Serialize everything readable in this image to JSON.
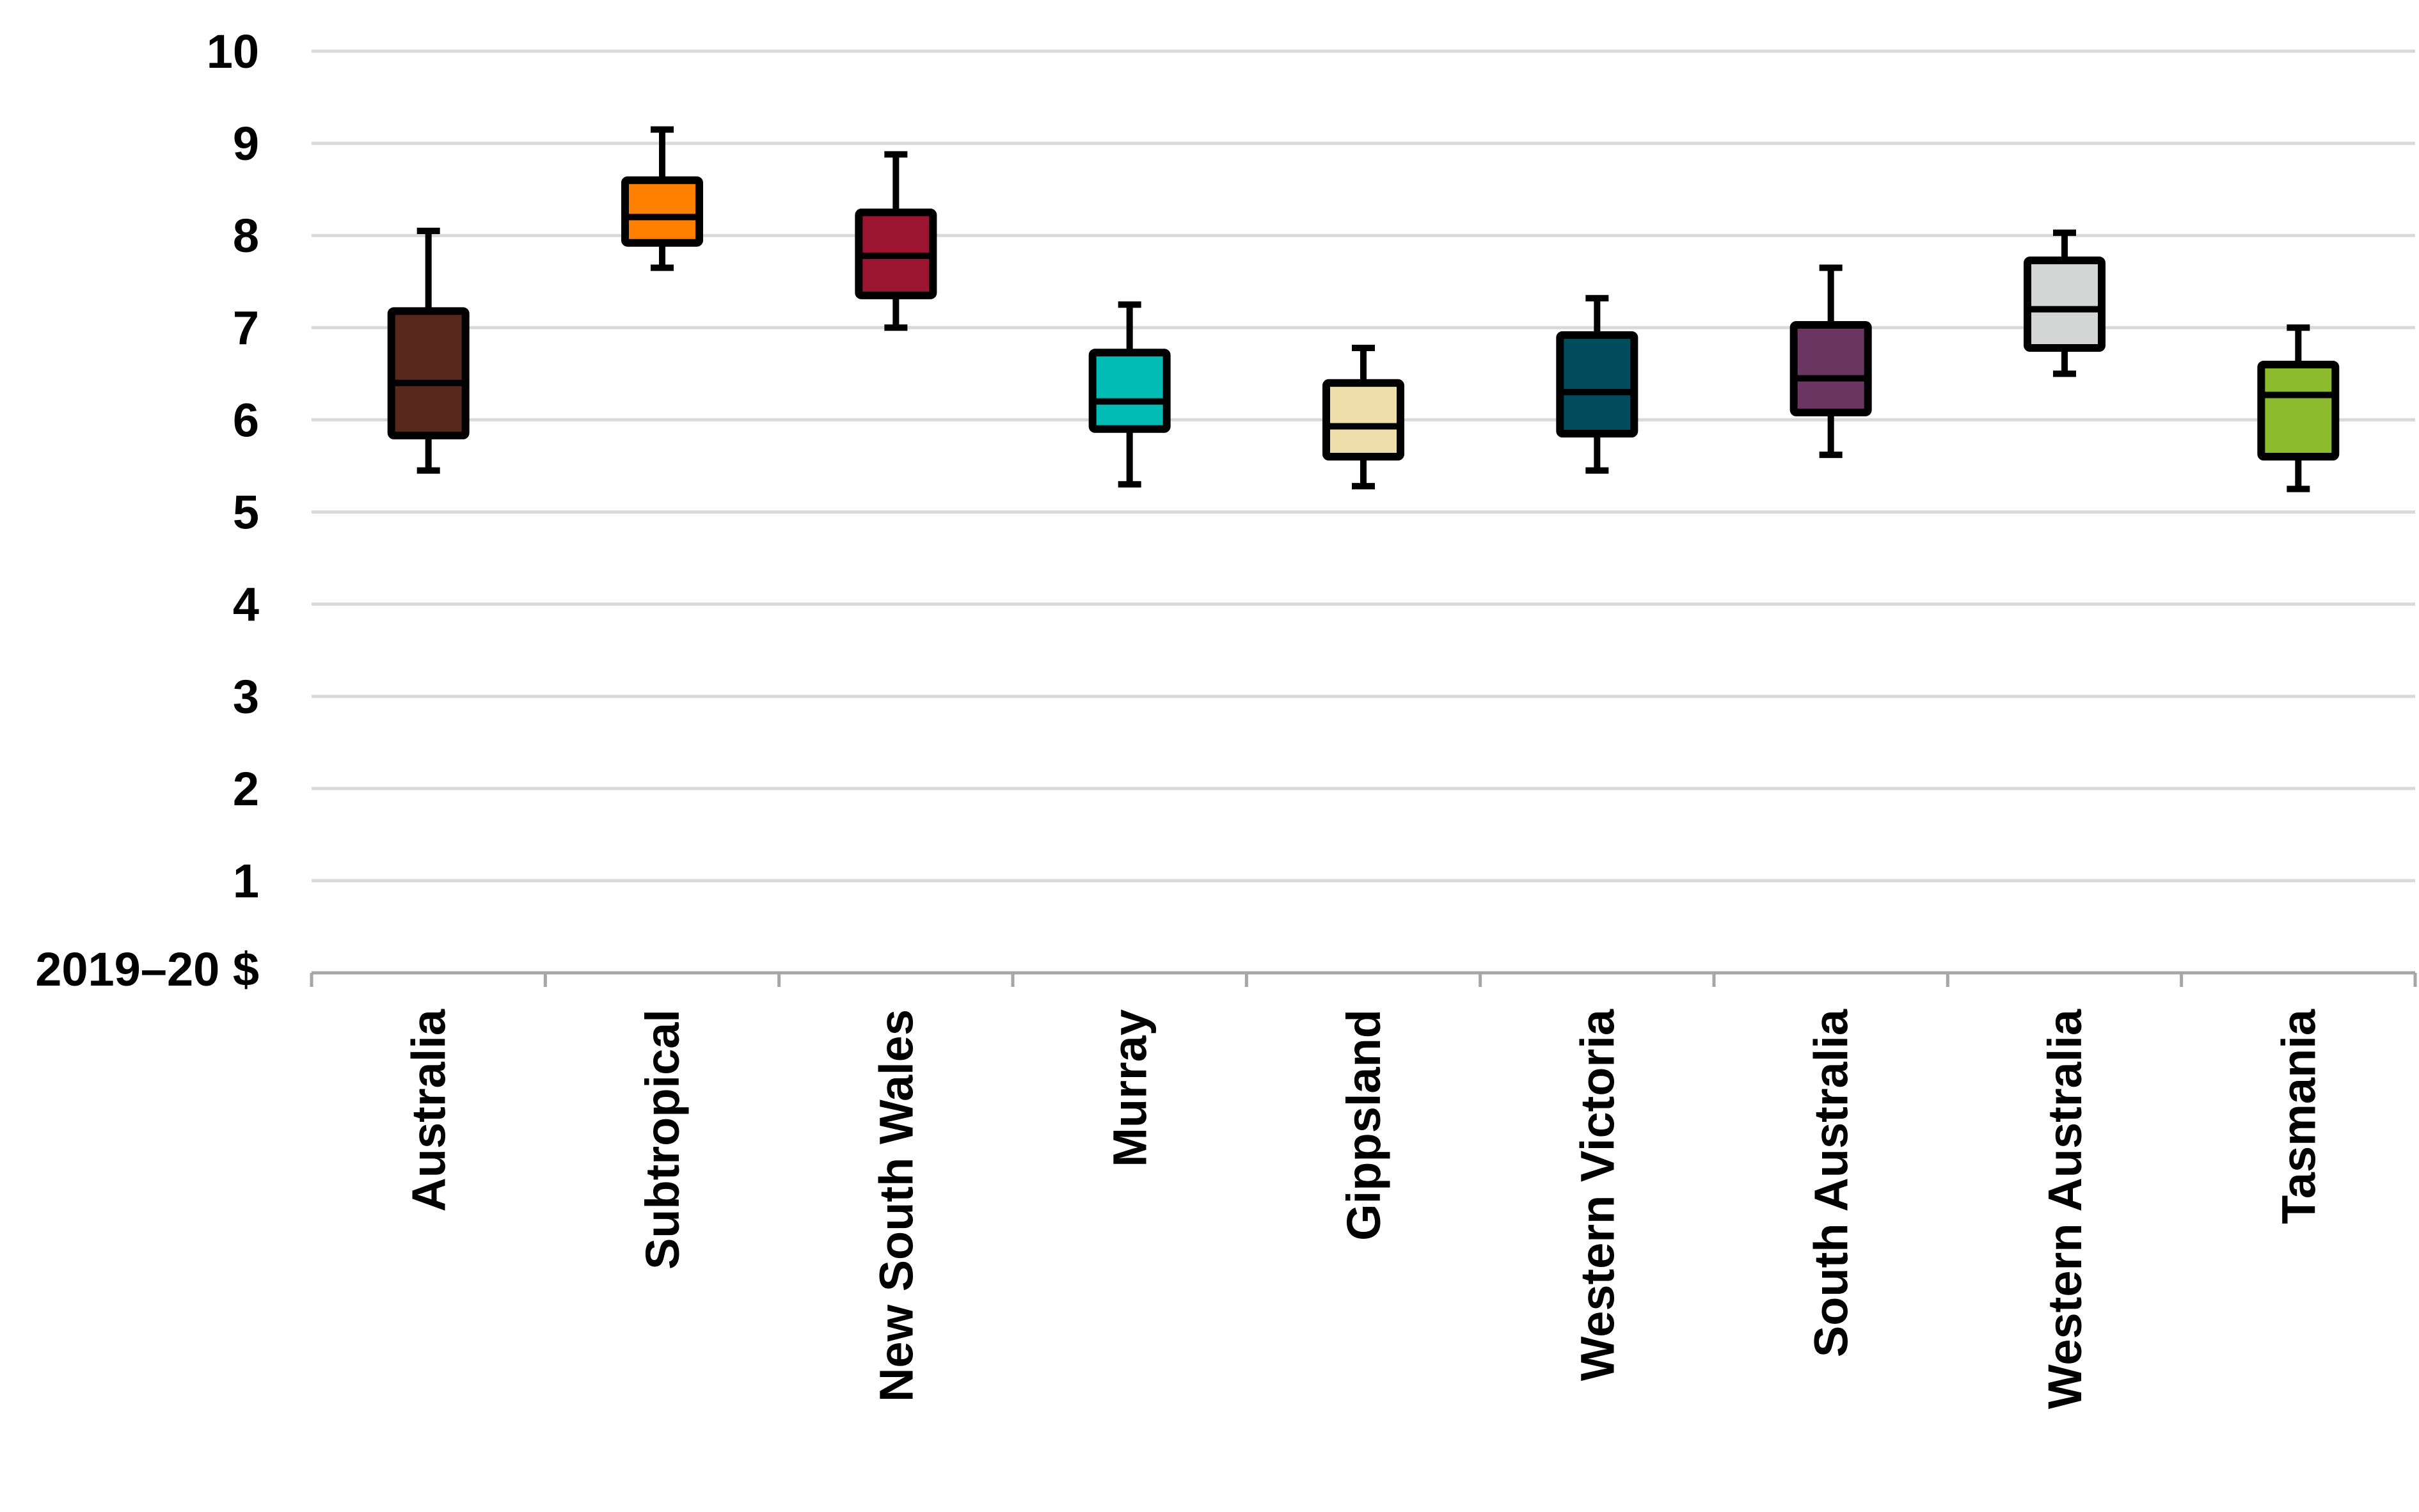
{
  "chart_data": {
    "type": "box",
    "ylabel": "2019–20 $",
    "ylim": [
      0,
      10
    ],
    "yticks": [
      1,
      2,
      3,
      4,
      5,
      6,
      7,
      8,
      9,
      10
    ],
    "grid": true,
    "categories": [
      "Australia",
      "Subtropical",
      "New South Wales",
      "Murray",
      "Gippsland",
      "Western Victoria",
      "South Australia",
      "Western Australia",
      "Tasmania"
    ],
    "boxes": [
      {
        "category": "Australia",
        "min": 5.45,
        "q1": 5.83,
        "median": 6.4,
        "q3": 7.18,
        "max": 8.05,
        "color": "#57291c"
      },
      {
        "category": "Subtropical",
        "min": 7.65,
        "q1": 7.92,
        "median": 8.2,
        "q3": 8.6,
        "max": 9.15,
        "color": "#ff7f00"
      },
      {
        "category": "New South Wales",
        "min": 7.0,
        "q1": 7.35,
        "median": 7.78,
        "q3": 8.25,
        "max": 8.88,
        "color": "#9c1530"
      },
      {
        "category": "Murray",
        "min": 5.3,
        "q1": 5.9,
        "median": 6.2,
        "q3": 6.73,
        "max": 7.25,
        "color": "#00bcb4"
      },
      {
        "category": "Gippsland",
        "min": 5.28,
        "q1": 5.6,
        "median": 5.93,
        "q3": 6.4,
        "max": 6.78,
        "color": "#efdcab"
      },
      {
        "category": "Western Victoria",
        "min": 5.45,
        "q1": 5.85,
        "median": 6.3,
        "q3": 6.92,
        "max": 7.32,
        "color": "#004c5d"
      },
      {
        "category": "South Australia",
        "min": 5.62,
        "q1": 6.08,
        "median": 6.45,
        "q3": 7.03,
        "max": 7.65,
        "color": "#6b3562"
      },
      {
        "category": "Western Australia",
        "min": 6.5,
        "q1": 6.78,
        "median": 7.2,
        "q3": 7.73,
        "max": 8.03,
        "color": "#d4d6d5"
      },
      {
        "category": "Tasmania",
        "min": 5.25,
        "q1": 5.6,
        "median": 6.27,
        "q3": 6.6,
        "max": 7.0,
        "color": "#8dbb2e"
      }
    ]
  }
}
